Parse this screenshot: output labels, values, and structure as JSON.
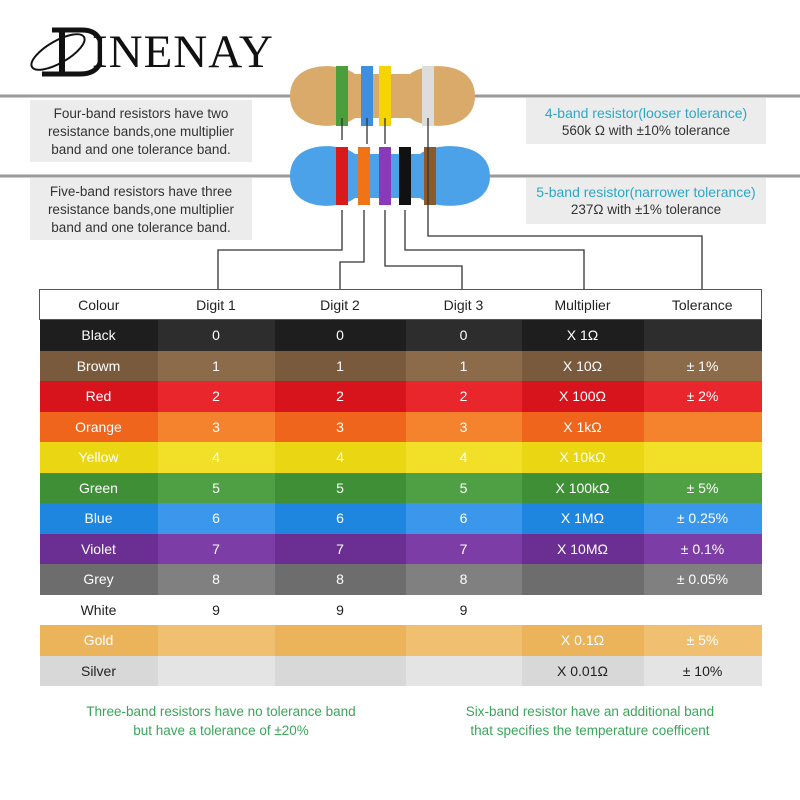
{
  "brand": {
    "name": "INENAY"
  },
  "callouts": {
    "four_band_left": [
      "Four-band resistors have two",
      "resistance bands,one multiplier",
      "band and one tolerance band."
    ],
    "five_band_left": [
      "Five-band resistors have three",
      "resistance bands,one multiplier",
      "band and one tolerance band."
    ],
    "four_band_right": {
      "title": "4-band resistor(looser tolerance)",
      "value": "560k Ω with ±10% tolerance"
    },
    "five_band_right": {
      "title": "5-band resistor(narrower tolerance)",
      "value": "237Ω with ±1% tolerance"
    }
  },
  "resistors": {
    "four_band": {
      "body_color": "#d9aa6a",
      "bands": [
        "#4a9e3c",
        "#3e8fe0",
        "#f5d400",
        "#dddddd"
      ]
    },
    "five_band": {
      "body_color": "#4ca2e8",
      "bands": [
        "#d91a1a",
        "#f07318",
        "#8a3ab9",
        "#111111",
        "#8a5a2a"
      ]
    }
  },
  "table": {
    "headers": [
      "Colour",
      "Digit 1",
      "Digit 2",
      "Digit 3",
      "Multiplier",
      "Tolerance"
    ],
    "rows": [
      {
        "name": "Black",
        "key": "black",
        "colors": [
          "#1e1e1e",
          "#2d2d2d",
          "#1e1e1e",
          "#2d2d2d",
          "#1e1e1e",
          "#2d2d2d"
        ],
        "cells": [
          "Black",
          "0",
          "0",
          "0",
          "X 1Ω",
          ""
        ]
      },
      {
        "name": "Browm",
        "key": "brown",
        "colors": [
          "#7a5a3c",
          "#8c6b4a",
          "#7a5a3c",
          "#8c6b4a",
          "#7a5a3c",
          "#8c6b4a"
        ],
        "cells": [
          "Browm",
          "1",
          "1",
          "1",
          "X 10Ω",
          "± 1%"
        ]
      },
      {
        "name": "Red",
        "key": "red",
        "colors": [
          "#d7141c",
          "#e8262c",
          "#d7141c",
          "#e8262c",
          "#d7141c",
          "#e8262c"
        ],
        "cells": [
          "Red",
          "2",
          "2",
          "2",
          "X 100Ω",
          "± 2%"
        ]
      },
      {
        "name": "Orange",
        "key": "orange",
        "colors": [
          "#f0651c",
          "#f5822c",
          "#f0651c",
          "#f5822c",
          "#f0651c",
          "#f5822c"
        ],
        "cells": [
          "Orange",
          "3",
          "3",
          "3",
          "X 1kΩ",
          ""
        ]
      },
      {
        "name": "Yellow",
        "key": "yellow",
        "colors": [
          "#ead613",
          "#f2df27",
          "#ead613",
          "#f2df27",
          "#ead613",
          "#f2df27"
        ],
        "cells": [
          "Yellow",
          "4",
          "4",
          "4",
          "X 10kΩ",
          ""
        ]
      },
      {
        "name": "Green",
        "key": "green",
        "colors": [
          "#3f8f37",
          "#4fa044",
          "#3f8f37",
          "#4fa044",
          "#3f8f37",
          "#4fa044"
        ],
        "cells": [
          "Green",
          "5",
          "5",
          "5",
          "X 100kΩ",
          "± 5%"
        ]
      },
      {
        "name": "Blue",
        "key": "blue",
        "colors": [
          "#1f86e0",
          "#3a97ec",
          "#1f86e0",
          "#3a97ec",
          "#1f86e0",
          "#3a97ec"
        ],
        "cells": [
          "Blue",
          "6",
          "6",
          "6",
          "X 1MΩ",
          "± 0.25%"
        ]
      },
      {
        "name": "Violet",
        "key": "violet",
        "colors": [
          "#6b2f93",
          "#7d3da6",
          "#6b2f93",
          "#7d3da6",
          "#6b2f93",
          "#7d3da6"
        ],
        "cells": [
          "Violet",
          "7",
          "7",
          "7",
          "X 10MΩ",
          "± 0.1%"
        ]
      },
      {
        "name": "Grey",
        "key": "grey",
        "colors": [
          "#6d6d6d",
          "#808080",
          "#6d6d6d",
          "#808080",
          "#6d6d6d",
          "#808080"
        ],
        "cells": [
          "Grey",
          "8",
          "8",
          "8",
          "",
          "± 0.05%"
        ]
      },
      {
        "name": "White",
        "key": "white",
        "colors": [
          "#ffffff",
          "#ffffff",
          "#ffffff",
          "#ffffff",
          "#ffffff",
          "#ffffff"
        ],
        "cells": [
          "White",
          "9",
          "9",
          "9",
          "",
          ""
        ]
      },
      {
        "name": "Gold",
        "key": "gold",
        "colors": [
          "#ebb45a",
          "#f0c070",
          "#ebb45a",
          "#f0c070",
          "#ebb45a",
          "#f0c070"
        ],
        "cells": [
          "Gold",
          "",
          "",
          "",
          "X 0.1Ω",
          "± 5%"
        ]
      },
      {
        "name": "Silver",
        "key": "silver",
        "colors": [
          "#d8d8d8",
          "#e4e4e4",
          "#d8d8d8",
          "#e4e4e4",
          "#d8d8d8",
          "#e4e4e4"
        ],
        "cells": [
          "Silver",
          "",
          "",
          "",
          "X 0.01Ω",
          "± 10%"
        ]
      }
    ]
  },
  "footnotes": {
    "three_band": [
      "Three-band resistors have no tolerance band",
      "but have a tolerance of ±20%"
    ],
    "six_band": [
      "Six-band resistor have an additional band",
      "that specifies the temperature coefficent"
    ]
  }
}
